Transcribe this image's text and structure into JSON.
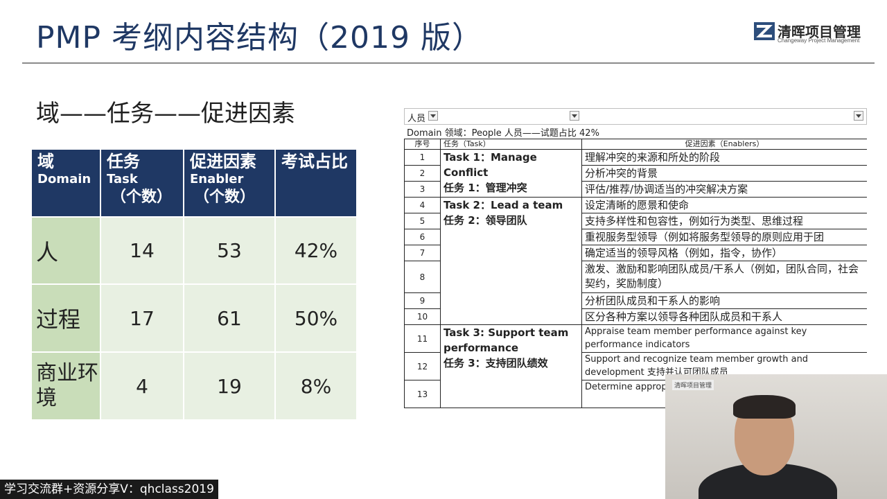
{
  "slide": {
    "title": "PMP 考纲内容结构（2019 版）",
    "subtitle": "域——任务——促进因素",
    "logo_cn": "清晖项目管理",
    "logo_en": "Changeway Project Management"
  },
  "left_table": {
    "headers": [
      {
        "cn": "域",
        "en": "Domain",
        "count": ""
      },
      {
        "cn": "任务",
        "en": "Task",
        "count": "（个数）"
      },
      {
        "cn": "促进因素",
        "en": "Enabler",
        "count": "（个数）"
      },
      {
        "cn": "考试占比",
        "en": "",
        "count": ""
      }
    ],
    "rows": [
      {
        "domain": "人",
        "tasks": "14",
        "enablers": "53",
        "share": "42%"
      },
      {
        "domain": "过程",
        "tasks": "17",
        "enablers": "61",
        "share": "50%"
      },
      {
        "domain": "商业环境",
        "tasks": "4",
        "enablers": "19",
        "share": "8%"
      }
    ]
  },
  "right_table": {
    "filter_label": "人员",
    "domain_line": "Domain 领域：People 人员——试题占比 42%",
    "col_no": "序号",
    "col_task": "任务（Task）",
    "col_enabler": "促进因素（Enablers）",
    "task1_en": "Task 1：Manage Conflict",
    "task1_cn": "任务 1：管理冲突",
    "task2_en": "Task 2：Lead a team",
    "task2_cn": "任务 2：领导团队",
    "task3_en": "Task 3: Support team performance",
    "task3_cn": "任务 3：支持团队绩效",
    "rows": [
      {
        "no": "1",
        "enabler": "理解冲突的来源和所处的阶段"
      },
      {
        "no": "2",
        "enabler": "分析冲突的背景"
      },
      {
        "no": "3",
        "enabler": "评估/推荐/协调适当的冲突解决方案"
      },
      {
        "no": "4",
        "enabler": "设定清晰的愿景和使命"
      },
      {
        "no": "5",
        "enabler": "支持多样性和包容性，例如行为类型、思维过程"
      },
      {
        "no": "6",
        "enabler": "重视服务型领导（例如将服务型领导的原则应用于团"
      },
      {
        "no": "7",
        "enabler": "确定适当的领导风格（例如，指令，协作）"
      },
      {
        "no": "8",
        "enabler": "激发、激励和影响团队成员/干系人（例如，团队合同，社会契约，奖励制度）"
      },
      {
        "no": "9",
        "enabler": "分析团队成员和干系人的影响"
      },
      {
        "no": "10",
        "enabler": "区分各种方案以领导各种团队成员和干系人"
      },
      {
        "no": "11",
        "enabler": "Appraise team member performance against key performance indicators"
      },
      {
        "no": "12",
        "enabler": "Support and recognize team member growth and development 支持并认可团队成员"
      },
      {
        "no": "13",
        "enabler": "Determine appropr 确定适当的反馈方法"
      }
    ]
  },
  "webcam": {
    "logo_text": "清晖项目管理"
  },
  "watermark": "学习交流群+资源分享V：qhclass2019"
}
